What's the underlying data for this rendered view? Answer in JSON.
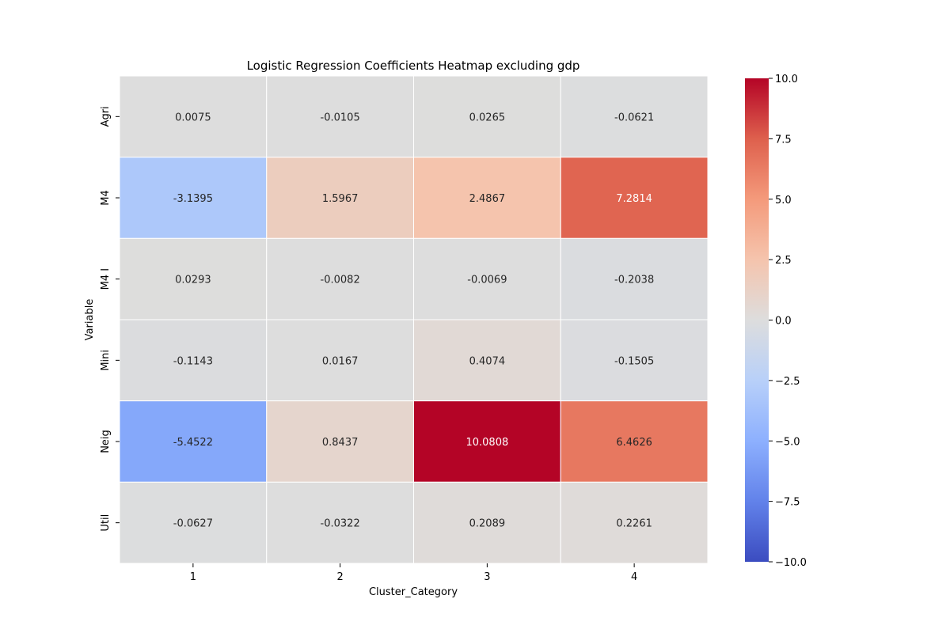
{
  "chart_data": {
    "type": "heatmap",
    "title": "Logistic Regression Coefficients Heatmap excluding gdp",
    "xlabel": "Cluster_Category",
    "ylabel": "Variable",
    "x_categories": [
      "1",
      "2",
      "3",
      "4"
    ],
    "y_categories": [
      "Agri",
      "M4",
      "M4 I",
      "Mini",
      "Neig",
      "Util"
    ],
    "values": [
      [
        0.0075,
        -0.0105,
        0.0265,
        -0.0621
      ],
      [
        -3.1395,
        1.5967,
        2.4867,
        7.2814
      ],
      [
        0.0293,
        -0.0082,
        -0.0069,
        -0.2038
      ],
      [
        -0.1143,
        0.0167,
        0.4074,
        -0.1505
      ],
      [
        -5.4522,
        0.8437,
        10.0808,
        6.4626
      ],
      [
        -0.0627,
        -0.0322,
        0.2089,
        0.2261
      ]
    ],
    "value_labels": [
      [
        "0.0075",
        "-0.0105",
        "0.0265",
        "-0.0621"
      ],
      [
        "-3.1395",
        "1.5967",
        "2.4867",
        "7.2814"
      ],
      [
        "0.0293",
        "-0.0082",
        "-0.0069",
        "-0.2038"
      ],
      [
        "-0.1143",
        "0.0167",
        "0.4074",
        "-0.1505"
      ],
      [
        "-5.4522",
        "0.8437",
        "10.0808",
        "6.4626"
      ],
      [
        "-0.0627",
        "-0.0322",
        "0.2089",
        "0.2261"
      ]
    ],
    "colormap": "coolwarm",
    "vmin": -10.0,
    "vmax": 10.0,
    "colorbar_ticks": [
      -10.0,
      -7.5,
      -5.0,
      -2.5,
      0.0,
      2.5,
      5.0,
      7.5,
      10.0
    ],
    "colorbar_tick_labels": [
      "−10.0",
      "−7.5",
      "−5.0",
      "−2.5",
      "0.0",
      "2.5",
      "5.0",
      "7.5",
      "10.0"
    ],
    "grid": false,
    "cell_borders": "white"
  }
}
